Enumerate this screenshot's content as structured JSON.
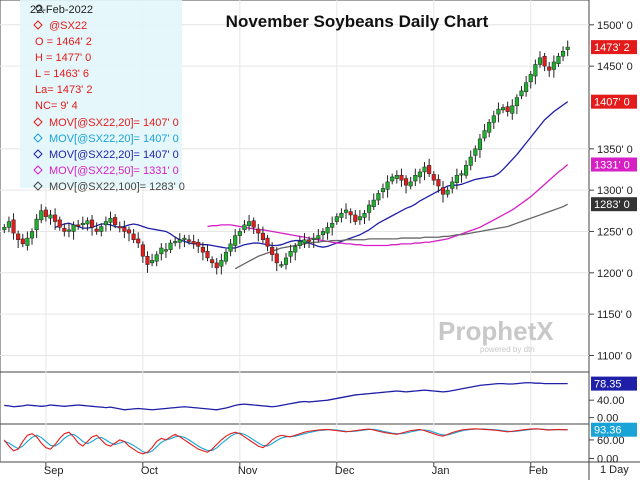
{
  "chart_data": {
    "type": "candlestick",
    "title": "November Soybeans Daily Chart",
    "date_label": "22-Feb-2022",
    "symbol": "@SX22",
    "ohlc_labels": [
      "O = 1464' 2",
      "H = 1477' 0",
      "L = 1463' 6",
      "La= 1473' 2",
      "NC= 9' 4"
    ],
    "legend": [
      {
        "text": "MOV[@SX22,20]= 1407' 0",
        "color": "#e41b1b"
      },
      {
        "text": "MOV[@SX22,20]= 1407' 0",
        "color": "#1aa3d6"
      },
      {
        "text": "MOV[@SX22,20]= 1407' 0",
        "color": "#1f1fa8"
      },
      {
        "text": "MOV[@SX22,50]= 1331' 0",
        "color": "#d61fc4"
      },
      {
        "text": "MOV[@SX22,100]= 1283' 0",
        "color": "#444444"
      }
    ],
    "y_axis": {
      "ticks": [
        "1500' 0",
        "1450' 0",
        "1350' 0",
        "1300' 0",
        "1250' 0",
        "1200' 0",
        "1150' 0",
        "1100' 0"
      ],
      "tick_values": [
        1500,
        1450,
        1350,
        1300,
        1250,
        1200,
        1150,
        1100
      ],
      "ylim": [
        1080,
        1530
      ]
    },
    "price_tags": [
      {
        "text": "1473' 2",
        "value": 1473,
        "bg": "#e41b1b",
        "fg": "#ffffff"
      },
      {
        "text": "1407' 0",
        "value": 1407,
        "bg": "#e41b1b",
        "fg": "#ffffff"
      },
      {
        "text": "1331' 0",
        "value": 1331,
        "bg": "#d61fc4",
        "fg": "#ffffff"
      },
      {
        "text": "1283' 0",
        "value": 1283,
        "bg": "#333333",
        "fg": "#ffffff"
      }
    ],
    "x_axis": {
      "labels": [
        "Sep",
        "Oct",
        "Nov",
        "Dec",
        "Jan",
        "Feb"
      ],
      "label_bars": [
        9,
        30,
        51,
        72,
        93,
        114
      ]
    },
    "closes": [
      1255,
      1262,
      1248,
      1240,
      1235,
      1242,
      1250,
      1265,
      1275,
      1268,
      1270,
      1262,
      1255,
      1250,
      1252,
      1258,
      1256,
      1260,
      1263,
      1255,
      1250,
      1256,
      1262,
      1266,
      1258,
      1255,
      1250,
      1248,
      1240,
      1236,
      1220,
      1210,
      1215,
      1222,
      1230,
      1228,
      1236,
      1238,
      1240,
      1242,
      1238,
      1235,
      1232,
      1225,
      1218,
      1212,
      1206,
      1215,
      1225,
      1235,
      1245,
      1250,
      1258,
      1262,
      1255,
      1248,
      1240,
      1232,
      1222,
      1212,
      1210,
      1218,
      1226,
      1232,
      1238,
      1240,
      1238,
      1242,
      1245,
      1250,
      1255,
      1260,
      1268,
      1272,
      1276,
      1270,
      1262,
      1268,
      1272,
      1282,
      1288,
      1296,
      1302,
      1310,
      1316,
      1318,
      1312,
      1306,
      1310,
      1318,
      1322,
      1328,
      1320,
      1312,
      1305,
      1295,
      1300,
      1310,
      1318,
      1320,
      1330,
      1340,
      1350,
      1362,
      1372,
      1382,
      1390,
      1398,
      1400,
      1395,
      1402,
      1412,
      1420,
      1430,
      1440,
      1452,
      1460,
      1450,
      1445,
      1455,
      1462,
      1468,
      1473
    ],
    "series": [
      {
        "name": "MOV[@SX22,20]",
        "color": "#1f1fa8",
        "values": [
          1255,
          1257,
          1259,
          1260,
          1258,
          1256,
          1254,
          1254,
          1255,
          1257,
          1259,
          1259,
          1258,
          1256,
          1255,
          1256,
          1258,
          1259,
          1258,
          1256,
          1254,
          1253,
          1252,
          1251,
          1250,
          1247,
          1243,
          1240,
          1238,
          1236,
          1235,
          1235,
          1234,
          1234,
          1233,
          1232,
          1231,
          1230,
          1230,
          1230,
          1232,
          1234,
          1235,
          1236,
          1236,
          1235,
          1234,
          1233,
          1233,
          1234,
          1236,
          1238,
          1239,
          1239,
          1238,
          1236,
          1234,
          1232,
          1231,
          1232,
          1234,
          1236,
          1238,
          1240,
          1242,
          1244,
          1246,
          1249,
          1252,
          1256,
          1260,
          1263,
          1266,
          1269,
          1272,
          1275,
          1278,
          1280,
          1283,
          1287,
          1290,
          1293,
          1296,
          1299,
          1302,
          1305,
          1306,
          1306,
          1307,
          1309,
          1311,
          1313,
          1314,
          1315,
          1316,
          1317,
          1320,
          1325,
          1331,
          1337,
          1343,
          1350,
          1357,
          1364,
          1371,
          1378,
          1385,
          1390,
          1395,
          1399,
          1403,
          1407
        ]
      },
      {
        "name": "MOV[@SX22,50]",
        "color": "#d61fc4",
        "values": [
          1256,
          1257,
          1257,
          1258,
          1258,
          1258,
          1257,
          1256,
          1255,
          1254,
          1253,
          1252,
          1252,
          1251,
          1250,
          1249,
          1248,
          1247,
          1246,
          1245,
          1244,
          1243,
          1242,
          1241,
          1240,
          1239,
          1238,
          1237,
          1236,
          1236,
          1235,
          1235,
          1234,
          1234,
          1233,
          1233,
          1233,
          1233,
          1233,
          1233,
          1234,
          1234,
          1235,
          1235,
          1235,
          1236,
          1236,
          1237,
          1237,
          1238,
          1239,
          1240,
          1241,
          1243,
          1245,
          1247,
          1249,
          1251,
          1253,
          1255,
          1258,
          1261,
          1264,
          1267,
          1270,
          1273,
          1276,
          1280,
          1284,
          1288,
          1292,
          1297,
          1302,
          1307,
          1312,
          1317,
          1322,
          1326,
          1331
        ]
      },
      {
        "name": "MOV[@SX22,100]",
        "color": "#666666",
        "values": [
          1205,
          1208,
          1211,
          1214,
          1217,
          1220,
          1222,
          1224,
          1226,
          1228,
          1230,
          1231,
          1232,
          1233,
          1234,
          1235,
          1236,
          1237,
          1237,
          1238,
          1238,
          1239,
          1239,
          1239,
          1240,
          1240,
          1240,
          1240,
          1240,
          1241,
          1241,
          1241,
          1241,
          1241,
          1241,
          1241,
          1242,
          1242,
          1242,
          1242,
          1242,
          1243,
          1243,
          1243,
          1243,
          1244,
          1244,
          1245,
          1246,
          1246,
          1247,
          1248,
          1249,
          1250,
          1251,
          1252,
          1253,
          1254,
          1255,
          1256,
          1258,
          1260,
          1262,
          1264,
          1266,
          1268,
          1270,
          1272,
          1274,
          1276,
          1278,
          1280,
          1283
        ]
      }
    ],
    "panel2": {
      "label": "78.35",
      "ticks": [
        "40.00",
        "0.00"
      ],
      "tick_values": [
        40,
        0
      ],
      "ylim": [
        -10,
        100
      ],
      "line_color": "#1f1fa8",
      "values": [
        28,
        27,
        25,
        26,
        27,
        29,
        28,
        27,
        26,
        27,
        29,
        28,
        27,
        26,
        27,
        28,
        29,
        28,
        27,
        26,
        25,
        24,
        23,
        24,
        22,
        20,
        18,
        19,
        20,
        21,
        20,
        19,
        18,
        19,
        20,
        21,
        22,
        23,
        24,
        25,
        24,
        23,
        22,
        21,
        20,
        19,
        18,
        20,
        22,
        25,
        28,
        30,
        31,
        30,
        29,
        28,
        27,
        26,
        25,
        26,
        28,
        30,
        32,
        34,
        36,
        37,
        36,
        37,
        38,
        39,
        40,
        42,
        44,
        46,
        48,
        50,
        52,
        53,
        54,
        55,
        56,
        57,
        58,
        59,
        60,
        61,
        60,
        59,
        60,
        61,
        62,
        63,
        62,
        61,
        60,
        59,
        60,
        62,
        64,
        66,
        68,
        70,
        72,
        74,
        75,
        76,
        77,
        78,
        78,
        77,
        77,
        78,
        79,
        80,
        80,
        79,
        79,
        78,
        78,
        78,
        78,
        78,
        78
      ]
    },
    "panel3": {
      "label": "93.36",
      "ticks": [
        "60.00",
        "0.00"
      ],
      "tick_values": [
        60,
        0
      ],
      "ylim": [
        -5,
        105
      ],
      "k_color": "#e41b1b",
      "d_color": "#1aa3d6",
      "k_values": [
        60,
        40,
        25,
        30,
        55,
        75,
        80,
        70,
        50,
        35,
        30,
        45,
        65,
        80,
        85,
        70,
        50,
        40,
        55,
        70,
        75,
        60,
        45,
        40,
        50,
        60,
        55,
        40,
        30,
        20,
        15,
        20,
        35,
        55,
        65,
        60,
        70,
        78,
        70,
        60,
        50,
        40,
        30,
        25,
        20,
        30,
        45,
        60,
        72,
        80,
        85,
        80,
        70,
        60,
        50,
        40,
        35,
        45,
        60,
        70,
        75,
        72,
        70,
        75,
        80,
        85,
        88,
        90,
        92,
        93,
        94,
        92,
        90,
        88,
        86,
        88,
        90,
        92,
        94,
        95,
        92,
        88,
        85,
        82,
        80,
        78,
        82,
        86,
        90,
        92,
        94,
        90,
        85,
        80,
        75,
        72,
        78,
        84,
        88,
        92,
        94,
        95,
        96,
        95,
        94,
        93,
        92,
        90,
        88,
        86,
        88,
        90,
        92,
        94,
        95,
        96,
        95,
        93,
        92,
        93,
        94,
        93,
        93
      ],
      "d_values": [
        55,
        50,
        40,
        32,
        40,
        55,
        68,
        75,
        68,
        55,
        42,
        40,
        50,
        65,
        75,
        78,
        68,
        55,
        48,
        55,
        65,
        68,
        60,
        50,
        45,
        50,
        55,
        50,
        42,
        32,
        22,
        18,
        24,
        38,
        52,
        60,
        64,
        70,
        72,
        68,
        60,
        50,
        40,
        32,
        26,
        26,
        34,
        48,
        60,
        72,
        80,
        82,
        78,
        70,
        60,
        50,
        42,
        40,
        48,
        58,
        66,
        70,
        71,
        72,
        76,
        80,
        84,
        87,
        90,
        91,
        93,
        93,
        92,
        90,
        88,
        87,
        88,
        90,
        92,
        94,
        94,
        92,
        88,
        85,
        82,
        80,
        80,
        82,
        86,
        89,
        92,
        92,
        90,
        85,
        80,
        76,
        76,
        80,
        85,
        89,
        92,
        94,
        95,
        95,
        95,
        94,
        93,
        92,
        90,
        88,
        87,
        88,
        90,
        92,
        94,
        95,
        95,
        94,
        93,
        93,
        93,
        93,
        93
      ]
    }
  },
  "watermark": {
    "brand": "ProphetX",
    "sub": "powered by dtn"
  },
  "footer": {
    "interval": "1 Day"
  }
}
